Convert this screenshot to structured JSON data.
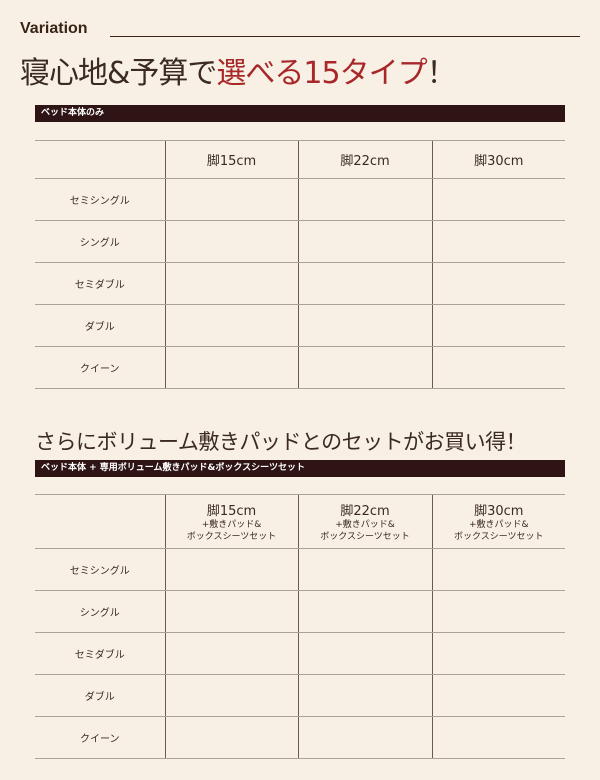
{
  "section_label": "Variation",
  "headline": {
    "prefix": "寝心地&予算で",
    "highlight": "選べる15タイプ",
    "suffix": "！"
  },
  "accent_color": "#a8282a",
  "table1": {
    "bar_label": "ベッド本体のみ",
    "columns": [
      "脚15cm",
      "脚22cm",
      "脚30cm"
    ],
    "rows": [
      "セミシングル",
      "シングル",
      "セミダブル",
      "ダブル",
      "クイーン"
    ]
  },
  "subheadline": "さらにボリューム敷きパッドとのセットがお買い得！",
  "table2": {
    "bar_label": "ベッド本体 + 専用ボリューム敷きパッド&ボックスシーツセット",
    "columns": [
      {
        "main": "脚15cm",
        "line2": "+敷きパッド&",
        "line3": "ボックスシーツセット"
      },
      {
        "main": "脚22cm",
        "line2": "+敷きパッド&",
        "line3": "ボックスシーツセット"
      },
      {
        "main": "脚30cm",
        "line2": "+敷きパッド&",
        "line3": "ボックスシーツセット"
      }
    ],
    "rows": [
      "セミシングル",
      "シングル",
      "セミダブル",
      "ダブル",
      "クイーン"
    ]
  }
}
